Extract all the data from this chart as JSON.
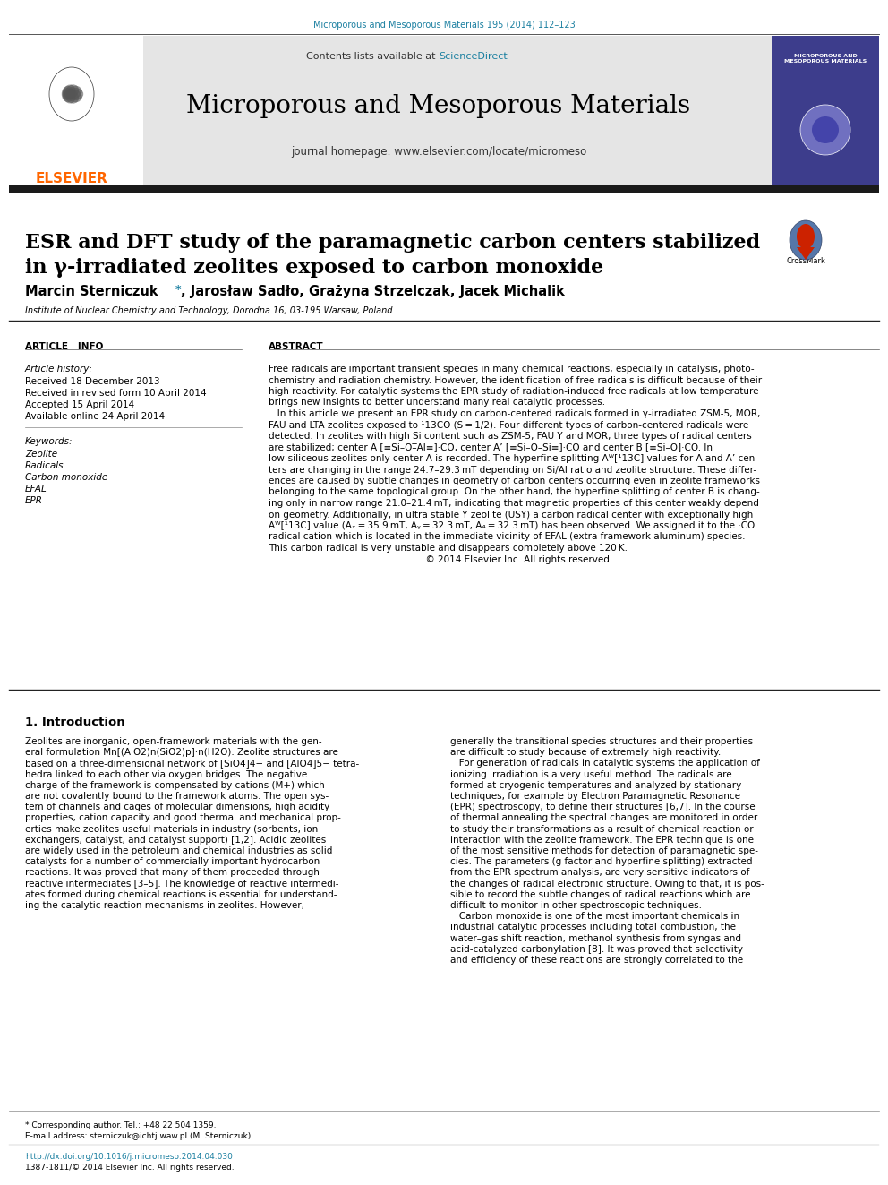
{
  "page_bg": "#ffffff",
  "top_journal_ref": "Microporous and Mesoporous Materials 195 (2014) 112–123",
  "top_journal_color": "#1a7fa0",
  "journal_name": "Microporous and Mesoporous Materials",
  "journal_homepage": "journal homepage: www.elsevier.com/locate/micromeso",
  "sciencedirect_color": "#1a7fa0",
  "header_bg": "#e5e5e5",
  "title_line1": "ESR and DFT study of the paramagnetic carbon centers stabilized",
  "title_line2": "in γ-irradiated zeolites exposed to carbon monoxide",
  "affiliation": "Institute of Nuclear Chemistry and Technology, Dorodna 16, 03-195 Warsaw, Poland",
  "article_info_header": "ARTICLE   INFO",
  "abstract_header": "ABSTRACT",
  "article_history_label": "Article history:",
  "received1": "Received 18 December 2013",
  "received2": "Received in revised form 10 April 2014",
  "accepted": "Accepted 15 April 2014",
  "online": "Available online 24 April 2014",
  "keywords_label": "Keywords:",
  "keywords": [
    "Zeolite",
    "Radicals",
    "Carbon monoxide",
    "EFAL",
    "EPR"
  ],
  "abstract_lines": [
    "Free radicals are important transient species in many chemical reactions, especially in catalysis, photo-",
    "chemistry and radiation chemistry. However, the identification of free radicals is difficult because of their",
    "high reactivity. For catalytic systems the EPR study of radiation-induced free radicals at low temperature",
    "brings new insights to better understand many real catalytic processes.",
    "   In this article we present an EPR study on carbon-centered radicals formed in γ-irradiated ZSM-5, MOR,",
    "FAU and LTA zeolites exposed to ¹13CO (S = 1/2). Four different types of carbon-centered radicals were",
    "detected. In zeolites with high Si content such as ZSM-5, FAU Y and MOR, three types of radical centers",
    "are stabilized; center A [≡Si–O–̅Al≡]·CO, center A’ [≡Si–O–Si≡]·CO and center B [≡Si–O]·CO. In",
    "low-siliceous zeolites only center A is recorded. The hyperfine splitting Aᵂ[¹13C] values for A and A’ cen-",
    "ters are changing in the range 24.7–29.3 mT depending on Si/Al ratio and zeolite structure. These differ-",
    "ences are caused by subtle changes in geometry of carbon centers occurring even in zeolite frameworks",
    "belonging to the same topological group. On the other hand, the hyperfine splitting of center B is chang-",
    "ing only in narrow range 21.0–21.4 mT, indicating that magnetic properties of this center weakly depend",
    "on geometry. Additionally, in ultra stable Y zeolite (USY) a carbon radical center with exceptionally high",
    "Aᵂ[¹13C] value (Aₓ = 35.9 mT, Aᵧ = 32.3 mT, A₄ = 32.3 mT) has been observed. We assigned it to the ·CO",
    "radical cation which is located in the immediate vicinity of EFAL (extra framework aluminum) species.",
    "This carbon radical is very unstable and disappears completely above 120 K.",
    "                                                      © 2014 Elsevier Inc. All rights reserved."
  ],
  "intro_header": "1. Introduction",
  "intro_col1_lines": [
    "Zeolites are inorganic, open-framework materials with the gen-",
    "eral formulation Mn[(AlO2)n(SiO2)p]·n(H2O). Zeolite structures are",
    "based on a three-dimensional network of [SiO4]4− and [AlO4]5− tetra-",
    "hedra linked to each other via oxygen bridges. The negative",
    "charge of the framework is compensated by cations (M+) which",
    "are not covalently bound to the framework atoms. The open sys-",
    "tem of channels and cages of molecular dimensions, high acidity",
    "properties, cation capacity and good thermal and mechanical prop-",
    "erties make zeolites useful materials in industry (sorbents, ion",
    "exchangers, catalyst, and catalyst support) [1,2]. Acidic zeolites",
    "are widely used in the petroleum and chemical industries as solid",
    "catalysts for a number of commercially important hydrocarbon",
    "reactions. It was proved that many of them proceeded through",
    "reactive intermediates [3–5]. The knowledge of reactive intermedi-",
    "ates formed during chemical reactions is essential for understand-",
    "ing the catalytic reaction mechanisms in zeolites. However,"
  ],
  "intro_col2_lines": [
    "generally the transitional species structures and their properties",
    "are difficult to study because of extremely high reactivity.",
    "   For generation of radicals in catalytic systems the application of",
    "ionizing irradiation is a very useful method. The radicals are",
    "formed at cryogenic temperatures and analyzed by stationary",
    "techniques, for example by Electron Paramagnetic Resonance",
    "(EPR) spectroscopy, to define their structures [6,7]. In the course",
    "of thermal annealing the spectral changes are monitored in order",
    "to study their transformations as a result of chemical reaction or",
    "interaction with the zeolite framework. The EPR technique is one",
    "of the most sensitive methods for detection of paramagnetic spe-",
    "cies. The parameters (g factor and hyperfine splitting) extracted",
    "from the EPR spectrum analysis, are very sensitive indicators of",
    "the changes of radical electronic structure. Owing to that, it is pos-",
    "sible to record the subtle changes of radical reactions which are",
    "difficult to monitor in other spectroscopic techniques.",
    "   Carbon monoxide is one of the most important chemicals in",
    "industrial catalytic processes including total combustion, the",
    "water–gas shift reaction, methanol synthesis from syngas and",
    "acid-catalyzed carbonylation [8]. It was proved that selectivity",
    "and efficiency of these reactions are strongly correlated to the"
  ],
  "footnote_star": "* Corresponding author. Tel.: +48 22 504 1359.",
  "footnote_email": "E-mail address: sterniczuk@ichtj.waw.pl (M. Sterniczuk).",
  "footer_doi": "http://dx.doi.org/10.1016/j.micromeso.2014.04.030",
  "footer_issn": "1387-1811/© 2014 Elsevier Inc. All rights reserved.",
  "elsevier_color": "#FF6600",
  "dark_bar_color": "#1a1a1a",
  "cover_bg": "#3d3d8c"
}
